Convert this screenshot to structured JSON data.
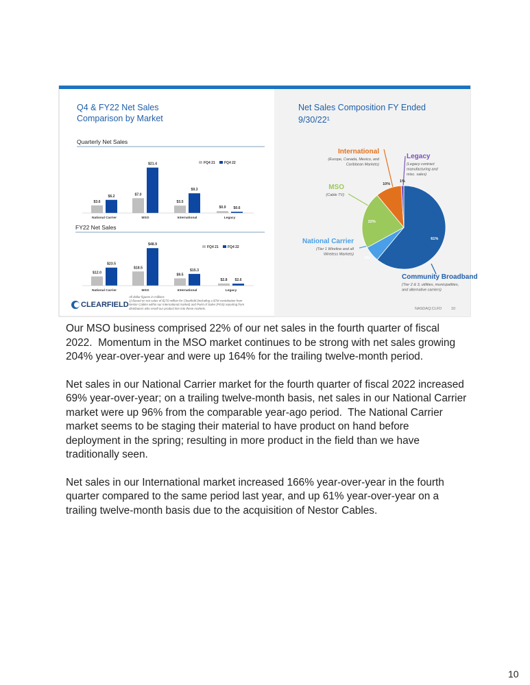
{
  "slide": {
    "left_title": [
      "Q4 & FY22 Net Sales",
      "Comparison by Market"
    ],
    "quarterly": {
      "title": "Quarterly Net Sales",
      "categories": [
        "National Carrier",
        "MSO",
        "International",
        "Legacy"
      ],
      "series": [
        {
          "name": "FQ4 21",
          "color": "#bfbfbf",
          "values": [
            3.6,
            7.0,
            3.5,
            0.9
          ],
          "value_labels": [
            "$3.6",
            "$7.0",
            "$3.5",
            "$0.9"
          ]
        },
        {
          "name": "FQ4 22",
          "color": "#0d47a1",
          "values": [
            6.2,
            21.4,
            9.3,
            0.6
          ],
          "value_labels": [
            "$6.2",
            "$21.4",
            "$9.3",
            "$0.6"
          ]
        }
      ]
    },
    "fy": {
      "title": "FY22 Net Sales",
      "categories": [
        "National Carrier",
        "MSO",
        "International",
        "Legacy"
      ],
      "series": [
        {
          "name": "FQ4 21",
          "color": "#bfbfbf",
          "values": [
            12.0,
            18.5,
            9.5,
            2.8
          ],
          "value_labels": [
            "$12.0",
            "$18.5",
            "$9.5",
            "$2.8"
          ]
        },
        {
          "name": "FQ4 22",
          "color": "#0d47a1",
          "values": [
            23.5,
            48.9,
            15.3,
            2.6
          ],
          "value_labels": [
            "$23.5",
            "$48.9",
            "$15.3",
            "$2.6"
          ]
        }
      ]
    },
    "footnote": [
      "All dollar figures in millions",
      "1) Based on net sales of $270 million for Clearfield (including a $7M contribution from",
      "Nestor Cables within our International market) and Point of Sales (POS) reporting from",
      "distributors who resell our product line into these markets."
    ],
    "logo": "CLEARFIELD",
    "right_title": [
      "Net Sales Composition FY Ended",
      "9/30/22¹"
    ],
    "pie": {
      "slices": [
        {
          "name": "Community Broadband",
          "value": 61,
          "value_label": "61%",
          "color": "#1f5fa8",
          "description": [
            "(Tier 2 & 3, utilities, municipalities,",
            "and alternative carriers)"
          ]
        },
        {
          "name": "National Carrier",
          "value": 6,
          "value_label": "6%",
          "color": "#4a9fe6",
          "description": [
            "(Tier 1 Wireline and all",
            "Wireless Markets)"
          ]
        },
        {
          "name": "MSO",
          "value": 22,
          "value_label": "22%",
          "color": "#9cc95c",
          "description": [
            "(Cable TV)"
          ]
        },
        {
          "name": "International",
          "value": 10,
          "value_label": "10%",
          "color": "#e2711d",
          "description": [
            "(Europe, Canada, Mexico, and",
            "Caribbean Markets)"
          ]
        },
        {
          "name": "Legacy",
          "value": 1,
          "value_label": "1%",
          "color": "#7b52b9",
          "description": [
            "(Legacy contract",
            "manufacturing and",
            "misc. sales)"
          ]
        }
      ]
    },
    "footer": "NASDAQ:CLFD",
    "slide_number": "10"
  },
  "body": [
    [
      "Our MSO business comprised 22% of our net sales in the fourth quarter of fiscal",
      "2022.  Momentum in the MSO market continues to be strong with net sales growing",
      "204% year-over-year and were up 164% for the trailing twelve-month period."
    ],
    [
      "Net sales in our National Carrier market for the fourth quarter of fiscal 2022 increased",
      "69% year-over-year; on a trailing twelve-month basis, net sales in our National Carrier",
      "market were up 96% from the comparable year-ago period.  The National Carrier",
      "market seems to be staging their material to have product on hand before",
      "deployment in the spring; resulting in more product in the field than we have",
      "traditionally seen."
    ],
    [
      "Net sales in our International market increased 166% year-over-year in the fourth",
      "quarter compared to the same period last year, and up 61% year-over-year on a",
      "trailing twelve-month basis due to the acquisition of Nestor Cables."
    ]
  ],
  "page_number": "10"
}
